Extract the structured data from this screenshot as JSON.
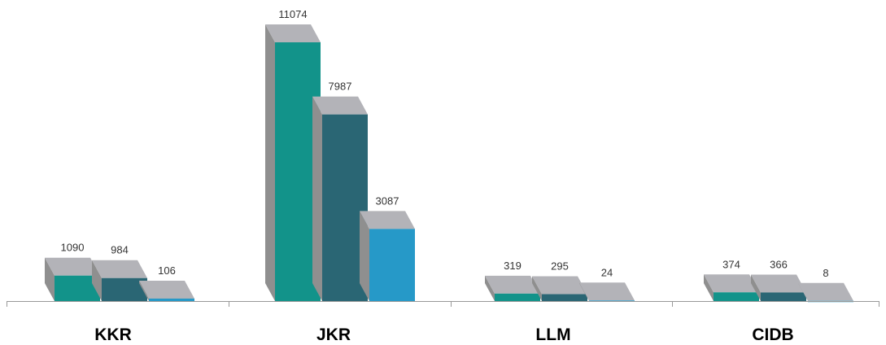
{
  "chart_data": {
    "type": "bar",
    "title": "",
    "xlabel": "",
    "ylabel": "",
    "categories": [
      "KKR",
      "JKR",
      "LLM",
      "CIDB"
    ],
    "series": [
      {
        "values": [
          1090,
          11074,
          319,
          374
        ],
        "color": "#12938a"
      },
      {
        "values": [
          984,
          7987,
          295,
          366
        ],
        "color": "#2a6674"
      },
      {
        "values": [
          106,
          3087,
          24,
          8
        ],
        "color": "#2699c8"
      }
    ],
    "value_labels": [
      [
        "1090",
        "984",
        "106"
      ],
      [
        "11074",
        "7987",
        "3087"
      ],
      [
        "319",
        "295",
        "24"
      ],
      [
        "374",
        "366",
        "8"
      ]
    ],
    "ylim": [
      0,
      11074
    ],
    "grid": false,
    "legend": "none",
    "style": "3d-bars",
    "colors": {
      "bar_side": "#8f8f8f",
      "bar_top": "#b3b3b8",
      "axis": "#999999"
    }
  }
}
